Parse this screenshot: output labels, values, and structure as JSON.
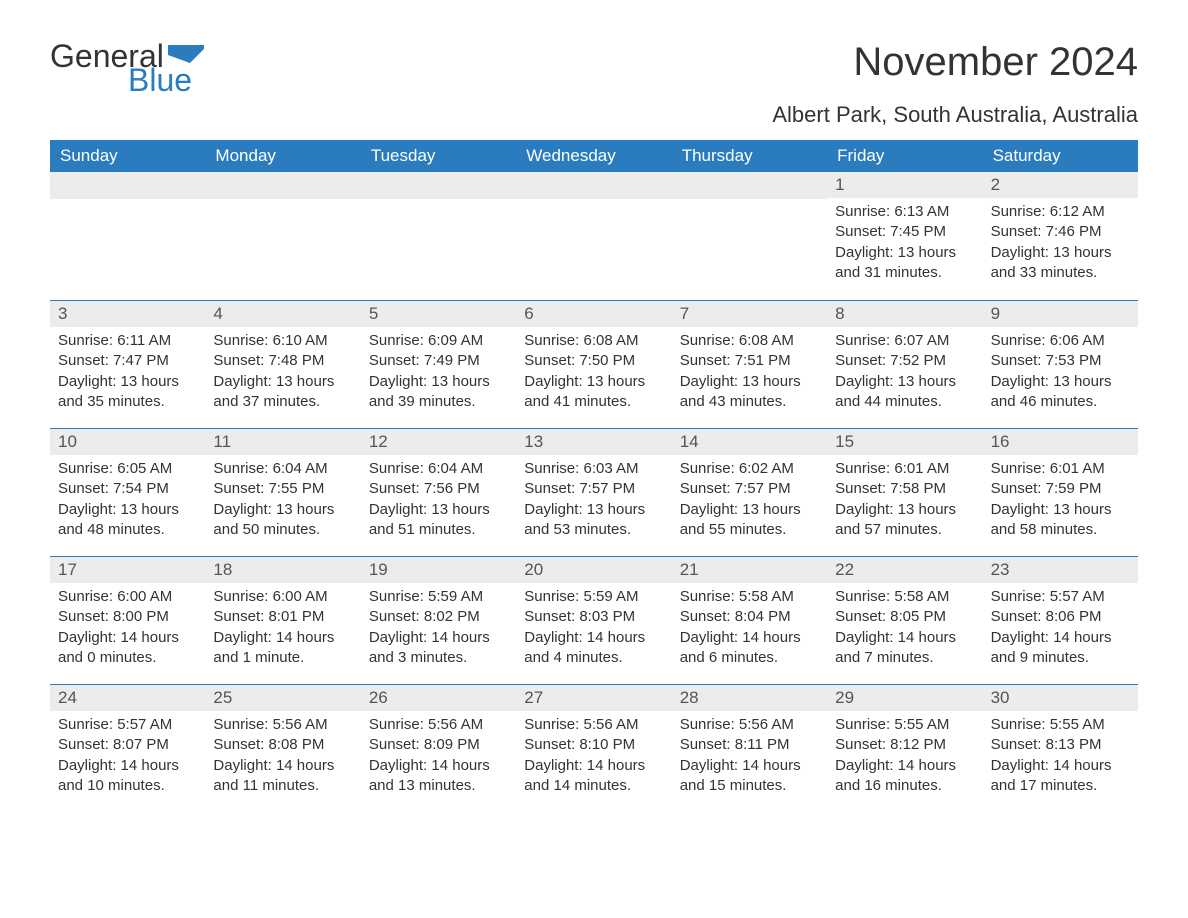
{
  "logo": {
    "text1": "General",
    "text2": "Blue",
    "flag_color": "#2a7cbf"
  },
  "title": "November 2024",
  "location": "Albert Park, South Australia, Australia",
  "colors": {
    "header_bg": "#2a7cbf",
    "header_text": "#ffffff",
    "daynum_bg": "#ececec",
    "daynum_text": "#555555",
    "body_text": "#333333",
    "border": "#2a7cbf",
    "page_bg": "#ffffff"
  },
  "weekdays": [
    "Sunday",
    "Monday",
    "Tuesday",
    "Wednesday",
    "Thursday",
    "Friday",
    "Saturday"
  ],
  "weeks": [
    [
      null,
      null,
      null,
      null,
      null,
      {
        "n": "1",
        "sunrise": "6:13 AM",
        "sunset": "7:45 PM",
        "daylight": "13 hours and 31 minutes."
      },
      {
        "n": "2",
        "sunrise": "6:12 AM",
        "sunset": "7:46 PM",
        "daylight": "13 hours and 33 minutes."
      }
    ],
    [
      {
        "n": "3",
        "sunrise": "6:11 AM",
        "sunset": "7:47 PM",
        "daylight": "13 hours and 35 minutes."
      },
      {
        "n": "4",
        "sunrise": "6:10 AM",
        "sunset": "7:48 PM",
        "daylight": "13 hours and 37 minutes."
      },
      {
        "n": "5",
        "sunrise": "6:09 AM",
        "sunset": "7:49 PM",
        "daylight": "13 hours and 39 minutes."
      },
      {
        "n": "6",
        "sunrise": "6:08 AM",
        "sunset": "7:50 PM",
        "daylight": "13 hours and 41 minutes."
      },
      {
        "n": "7",
        "sunrise": "6:08 AM",
        "sunset": "7:51 PM",
        "daylight": "13 hours and 43 minutes."
      },
      {
        "n": "8",
        "sunrise": "6:07 AM",
        "sunset": "7:52 PM",
        "daylight": "13 hours and 44 minutes."
      },
      {
        "n": "9",
        "sunrise": "6:06 AM",
        "sunset": "7:53 PM",
        "daylight": "13 hours and 46 minutes."
      }
    ],
    [
      {
        "n": "10",
        "sunrise": "6:05 AM",
        "sunset": "7:54 PM",
        "daylight": "13 hours and 48 minutes."
      },
      {
        "n": "11",
        "sunrise": "6:04 AM",
        "sunset": "7:55 PM",
        "daylight": "13 hours and 50 minutes."
      },
      {
        "n": "12",
        "sunrise": "6:04 AM",
        "sunset": "7:56 PM",
        "daylight": "13 hours and 51 minutes."
      },
      {
        "n": "13",
        "sunrise": "6:03 AM",
        "sunset": "7:57 PM",
        "daylight": "13 hours and 53 minutes."
      },
      {
        "n": "14",
        "sunrise": "6:02 AM",
        "sunset": "7:57 PM",
        "daylight": "13 hours and 55 minutes."
      },
      {
        "n": "15",
        "sunrise": "6:01 AM",
        "sunset": "7:58 PM",
        "daylight": "13 hours and 57 minutes."
      },
      {
        "n": "16",
        "sunrise": "6:01 AM",
        "sunset": "7:59 PM",
        "daylight": "13 hours and 58 minutes."
      }
    ],
    [
      {
        "n": "17",
        "sunrise": "6:00 AM",
        "sunset": "8:00 PM",
        "daylight": "14 hours and 0 minutes."
      },
      {
        "n": "18",
        "sunrise": "6:00 AM",
        "sunset": "8:01 PM",
        "daylight": "14 hours and 1 minute."
      },
      {
        "n": "19",
        "sunrise": "5:59 AM",
        "sunset": "8:02 PM",
        "daylight": "14 hours and 3 minutes."
      },
      {
        "n": "20",
        "sunrise": "5:59 AM",
        "sunset": "8:03 PM",
        "daylight": "14 hours and 4 minutes."
      },
      {
        "n": "21",
        "sunrise": "5:58 AM",
        "sunset": "8:04 PM",
        "daylight": "14 hours and 6 minutes."
      },
      {
        "n": "22",
        "sunrise": "5:58 AM",
        "sunset": "8:05 PM",
        "daylight": "14 hours and 7 minutes."
      },
      {
        "n": "23",
        "sunrise": "5:57 AM",
        "sunset": "8:06 PM",
        "daylight": "14 hours and 9 minutes."
      }
    ],
    [
      {
        "n": "24",
        "sunrise": "5:57 AM",
        "sunset": "8:07 PM",
        "daylight": "14 hours and 10 minutes."
      },
      {
        "n": "25",
        "sunrise": "5:56 AM",
        "sunset": "8:08 PM",
        "daylight": "14 hours and 11 minutes."
      },
      {
        "n": "26",
        "sunrise": "5:56 AM",
        "sunset": "8:09 PM",
        "daylight": "14 hours and 13 minutes."
      },
      {
        "n": "27",
        "sunrise": "5:56 AM",
        "sunset": "8:10 PM",
        "daylight": "14 hours and 14 minutes."
      },
      {
        "n": "28",
        "sunrise": "5:56 AM",
        "sunset": "8:11 PM",
        "daylight": "14 hours and 15 minutes."
      },
      {
        "n": "29",
        "sunrise": "5:55 AM",
        "sunset": "8:12 PM",
        "daylight": "14 hours and 16 minutes."
      },
      {
        "n": "30",
        "sunrise": "5:55 AM",
        "sunset": "8:13 PM",
        "daylight": "14 hours and 17 minutes."
      }
    ]
  ],
  "labels": {
    "sunrise": "Sunrise:",
    "sunset": "Sunset:",
    "daylight": "Daylight:"
  }
}
